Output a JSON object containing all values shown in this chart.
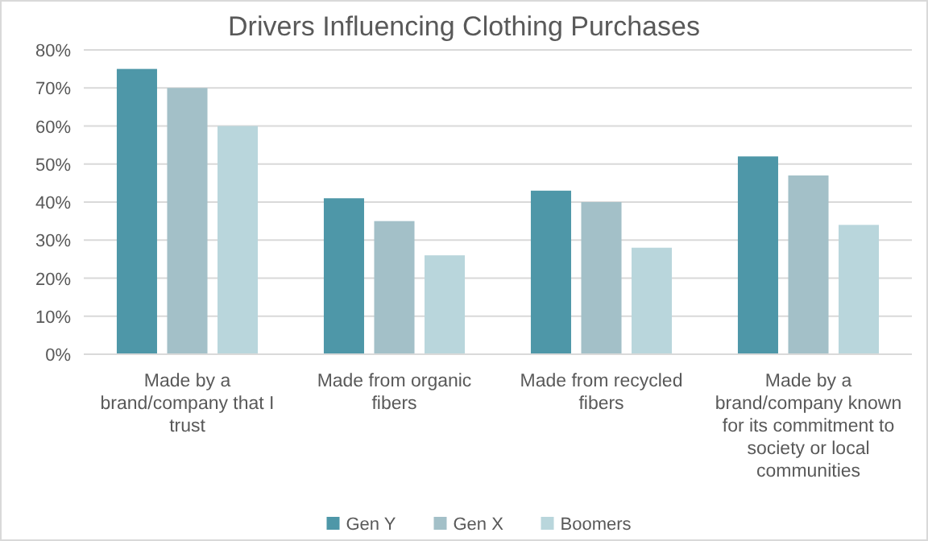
{
  "chart_data": {
    "type": "bar",
    "title": "Drivers Influencing Clothing Purchases",
    "categories": [
      "Made by a brand/company that I trust",
      "Made from organic fibers",
      "Made from recycled fibers",
      "Made by a brand/company known for its commitment to society or local communities"
    ],
    "series": [
      {
        "name": "Gen Y",
        "color": "#4e97a8",
        "values": [
          75,
          41,
          43,
          52
        ]
      },
      {
        "name": "Gen X",
        "color": "#a3c0c8",
        "values": [
          70,
          35,
          40,
          47
        ]
      },
      {
        "name": "Boomers",
        "color": "#b9d6dc",
        "values": [
          60,
          26,
          28,
          34
        ]
      }
    ],
    "ylim": [
      0,
      80
    ],
    "yticks": [
      {
        "value": 0,
        "label": "0%"
      },
      {
        "value": 10,
        "label": "10%"
      },
      {
        "value": 20,
        "label": "20%"
      },
      {
        "value": 30,
        "label": "30%"
      },
      {
        "value": 40,
        "label": "40%"
      },
      {
        "value": 50,
        "label": "50%"
      },
      {
        "value": 60,
        "label": "60%"
      },
      {
        "value": 70,
        "label": "70%"
      },
      {
        "value": 80,
        "label": "80%"
      }
    ],
    "grid": "y",
    "legend": "bottom"
  }
}
